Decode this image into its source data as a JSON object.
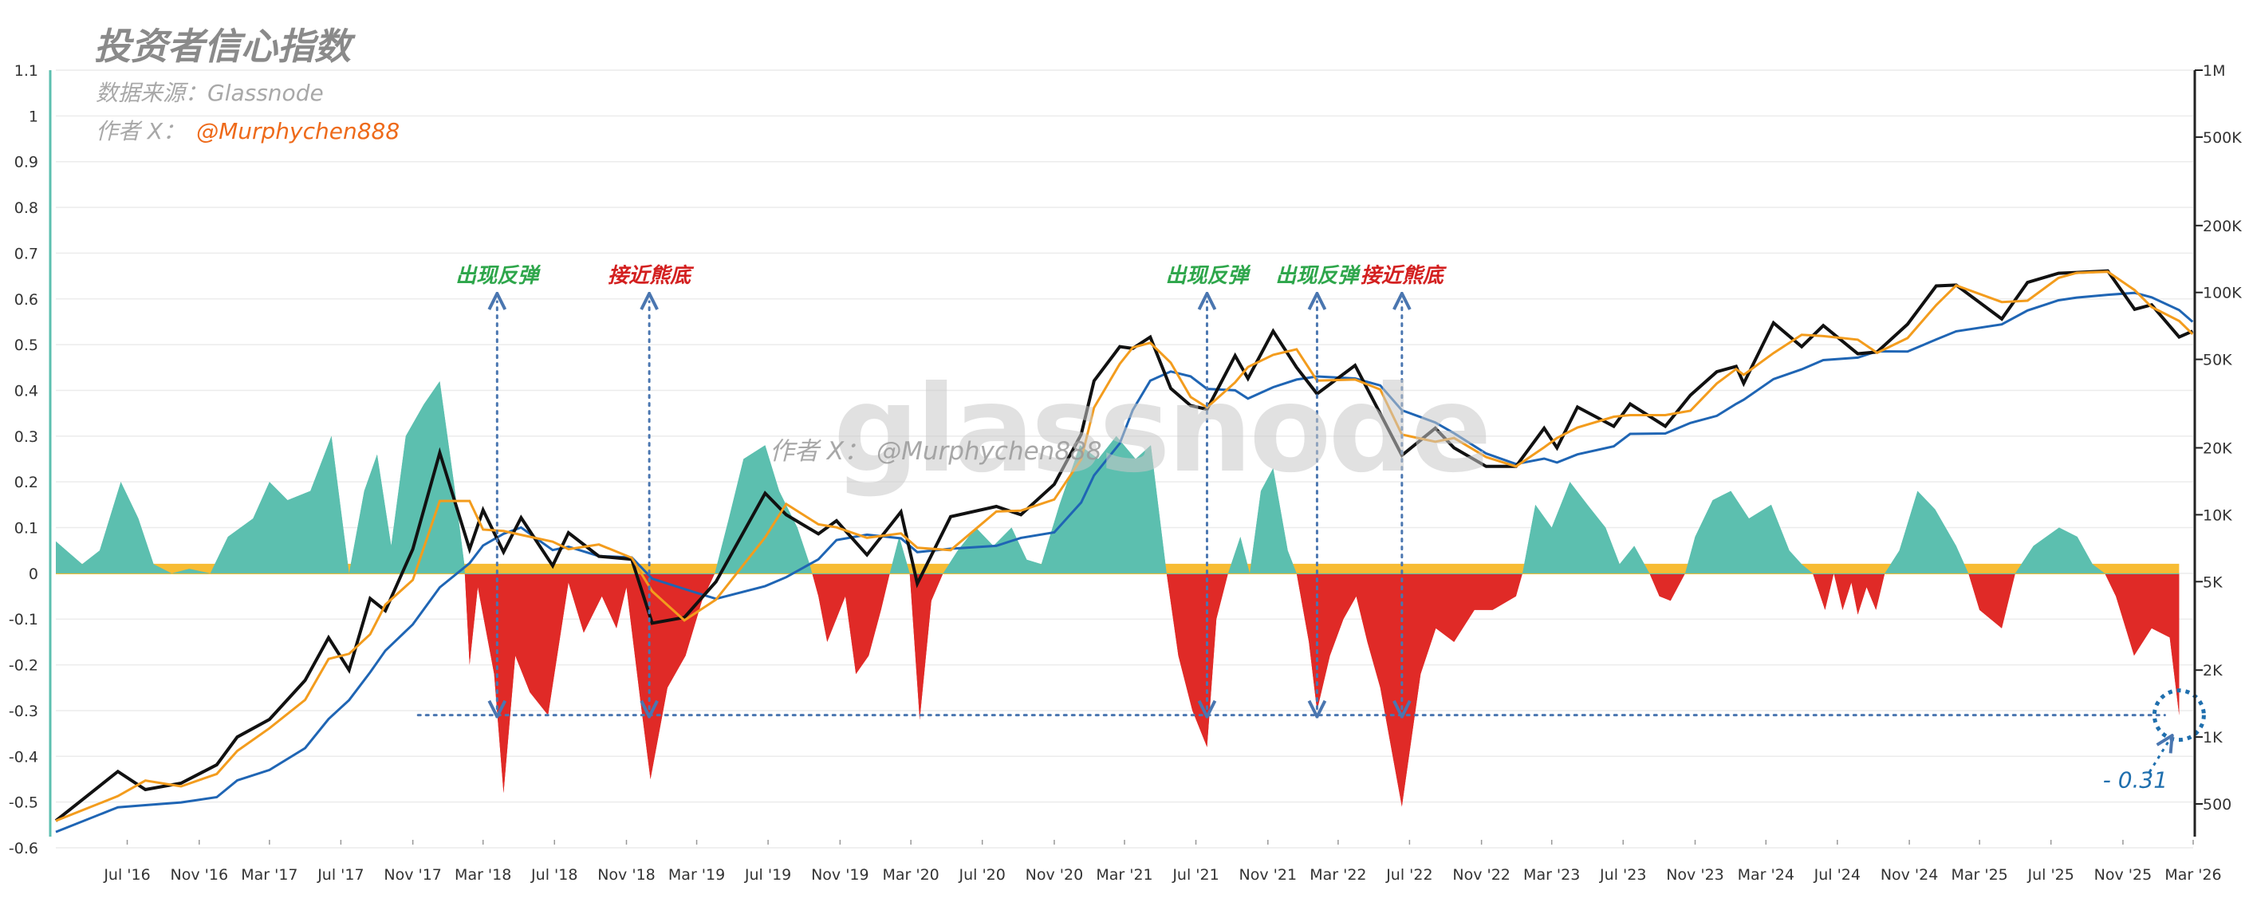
{
  "header": {
    "title": "投资者信心指数",
    "source_label": "数据来源：Glassnode",
    "author_label": "作者 X：",
    "author_handle": "@Murphychen888"
  },
  "watermark": {
    "brand": "glassnode",
    "author_label": "作者 X：",
    "author_handle": "@Murphychen888"
  },
  "chart_data": {
    "type": "area",
    "title": "投资者信心指数",
    "left_axis": {
      "ylim": [
        -0.6,
        1.1
      ],
      "ticks": [
        -0.6,
        -0.5,
        -0.4,
        -0.3,
        -0.2,
        -0.1,
        0,
        0.1,
        0.2,
        0.3,
        0.4,
        0.5,
        0.6,
        0.7,
        0.8,
        0.9,
        1,
        1.1
      ],
      "tick_labels": [
        "-0.6",
        "-0.5",
        "-0.4",
        "-0.3",
        "-0.2",
        "-0.1",
        "0",
        "0.1",
        "0.2",
        "0.3",
        "0.4",
        "0.5",
        "0.6",
        "0.7",
        "0.8",
        "0.9",
        "1",
        "1.1"
      ]
    },
    "right_axis": {
      "scale": "log",
      "ticks": [
        500,
        1000,
        2000,
        5000,
        10000,
        20000,
        50000,
        100000,
        200000,
        500000,
        1000000
      ],
      "tick_labels": [
        "500",
        "1K",
        "2K",
        "5K",
        "10K",
        "20K",
        "50K",
        "100K",
        "200K",
        "500K",
        "1M"
      ]
    },
    "x_axis": {
      "range": [
        "2016-03-01",
        "2026-03-01"
      ],
      "ticks": [
        "2016-07-01",
        "2016-11-01",
        "2017-03-01",
        "2017-07-01",
        "2017-11-01",
        "2018-03-01",
        "2018-07-01",
        "2018-11-01",
        "2019-03-01",
        "2019-07-01",
        "2019-11-01",
        "2020-03-01",
        "2020-07-01",
        "2020-11-01",
        "2021-03-01",
        "2021-07-01",
        "2021-11-01",
        "2022-03-01",
        "2022-07-01",
        "2022-11-01",
        "2023-03-01",
        "2023-07-01",
        "2023-11-01",
        "2024-03-01",
        "2024-07-01",
        "2024-11-01",
        "2025-03-01",
        "2025-07-01",
        "2025-11-01",
        "2026-03-01"
      ],
      "tick_labels": [
        "Jul '16",
        "Nov '16",
        "Mar '17",
        "Jul '17",
        "Nov '17",
        "Mar '18",
        "Jul '18",
        "Nov '18",
        "Mar '19",
        "Jul '19",
        "Nov '19",
        "Mar '20",
        "Jul '20",
        "Nov '20",
        "Mar '21",
        "Jul '21",
        "Nov '21",
        "Mar '22",
        "Jul '22",
        "Nov '22",
        "Mar '23",
        "Jul '23",
        "Nov '23",
        "Mar '24",
        "Jul '24",
        "Nov '24",
        "Mar '25",
        "Jul '25",
        "Nov '25",
        "Mar '26"
      ]
    },
    "colors": {
      "positive": "#5cbfaf",
      "neutral": "#f6b51e",
      "negative": "#e02a27",
      "price": "#111111",
      "short_ma": "#f39c1d",
      "long_ma": "#1f65b4",
      "annotation_arrow": "#4a76b0",
      "label_rebound": "#2ea64b",
      "label_bottom": "#d32020"
    },
    "index_series": {
      "name": "",
      "points": [
        [
          "2016-03-01",
          0.07
        ],
        [
          "2016-04-15",
          0.02
        ],
        [
          "2016-05-15",
          0.05
        ],
        [
          "2016-06-20",
          0.2
        ],
        [
          "2016-07-20",
          0.12
        ],
        [
          "2016-08-15",
          0.02
        ],
        [
          "2016-09-15",
          0.0
        ],
        [
          "2016-10-15",
          0.01
        ],
        [
          "2016-11-20",
          0.0
        ],
        [
          "2016-12-20",
          0.08
        ],
        [
          "2017-02-01",
          0.12
        ],
        [
          "2017-03-01",
          0.2
        ],
        [
          "2017-04-01",
          0.16
        ],
        [
          "2017-05-10",
          0.18
        ],
        [
          "2017-06-15",
          0.3
        ],
        [
          "2017-07-15",
          0.0
        ],
        [
          "2017-08-10",
          0.18
        ],
        [
          "2017-09-01",
          0.26
        ],
        [
          "2017-09-25",
          0.06
        ],
        [
          "2017-10-20",
          0.3
        ],
        [
          "2017-11-20",
          0.37
        ],
        [
          "2017-12-17",
          0.42
        ],
        [
          "2018-01-10",
          0.2
        ],
        [
          "2018-01-28",
          0.02
        ],
        [
          "2018-02-06",
          -0.2
        ],
        [
          "2018-02-20",
          -0.03
        ],
        [
          "2018-03-20",
          -0.22
        ],
        [
          "2018-04-05",
          -0.48
        ],
        [
          "2018-04-25",
          -0.18
        ],
        [
          "2018-05-20",
          -0.26
        ],
        [
          "2018-06-20",
          -0.31
        ],
        [
          "2018-07-25",
          -0.02
        ],
        [
          "2018-08-20",
          -0.13
        ],
        [
          "2018-09-20",
          -0.05
        ],
        [
          "2018-10-15",
          -0.12
        ],
        [
          "2018-11-01",
          -0.03
        ],
        [
          "2018-11-25",
          -0.28
        ],
        [
          "2018-12-12",
          -0.45
        ],
        [
          "2019-01-10",
          -0.25
        ],
        [
          "2019-02-10",
          -0.18
        ],
        [
          "2019-03-10",
          -0.06
        ],
        [
          "2019-04-01",
          0.0
        ],
        [
          "2019-04-25",
          0.12
        ],
        [
          "2019-05-20",
          0.25
        ],
        [
          "2019-06-26",
          0.28
        ],
        [
          "2019-07-20",
          0.18
        ],
        [
          "2019-08-20",
          0.1
        ],
        [
          "2019-09-10",
          0.02
        ],
        [
          "2019-09-25",
          -0.05
        ],
        [
          "2019-10-10",
          -0.15
        ],
        [
          "2019-11-10",
          -0.05
        ],
        [
          "2019-11-28",
          -0.22
        ],
        [
          "2019-12-20",
          -0.18
        ],
        [
          "2020-01-10",
          -0.08
        ],
        [
          "2020-01-25",
          0.0
        ],
        [
          "2020-02-10",
          0.08
        ],
        [
          "2020-02-28",
          0.0
        ],
        [
          "2020-03-16",
          -0.32
        ],
        [
          "2020-04-05",
          -0.06
        ],
        [
          "2020-04-25",
          0.0
        ],
        [
          "2020-05-20",
          0.05
        ],
        [
          "2020-06-20",
          0.1
        ],
        [
          "2020-07-20",
          0.06
        ],
        [
          "2020-08-20",
          0.1
        ],
        [
          "2020-09-15",
          0.03
        ],
        [
          "2020-10-10",
          0.02
        ],
        [
          "2020-11-10",
          0.15
        ],
        [
          "2020-12-15",
          0.28
        ],
        [
          "2021-01-15",
          0.25
        ],
        [
          "2021-02-15",
          0.3
        ],
        [
          "2021-03-20",
          0.25
        ],
        [
          "2021-04-15",
          0.28
        ],
        [
          "2021-05-12",
          0.0
        ],
        [
          "2021-06-01",
          -0.18
        ],
        [
          "2021-06-25",
          -0.3
        ],
        [
          "2021-07-20",
          -0.38
        ],
        [
          "2021-08-05",
          -0.1
        ],
        [
          "2021-08-25",
          0.0
        ],
        [
          "2021-09-15",
          0.08
        ],
        [
          "2021-10-01",
          0.0
        ],
        [
          "2021-10-20",
          0.18
        ],
        [
          "2021-11-10",
          0.23
        ],
        [
          "2021-12-05",
          0.05
        ],
        [
          "2021-12-20",
          0.0
        ],
        [
          "2022-01-10",
          -0.15
        ],
        [
          "2022-01-24",
          -0.3
        ],
        [
          "2022-02-15",
          -0.18
        ],
        [
          "2022-03-10",
          -0.1
        ],
        [
          "2022-04-01",
          -0.05
        ],
        [
          "2022-04-20",
          -0.15
        ],
        [
          "2022-05-12",
          -0.25
        ],
        [
          "2022-06-18",
          -0.51
        ],
        [
          "2022-07-20",
          -0.22
        ],
        [
          "2022-08-15",
          -0.12
        ],
        [
          "2022-09-15",
          -0.15
        ],
        [
          "2022-10-20",
          -0.08
        ],
        [
          "2022-11-20",
          -0.08
        ],
        [
          "2022-12-30",
          -0.05
        ],
        [
          "2023-01-10",
          0.0
        ],
        [
          "2023-02-01",
          0.15
        ],
        [
          "2023-03-01",
          0.1
        ],
        [
          "2023-04-01",
          0.2
        ],
        [
          "2023-05-01",
          0.15
        ],
        [
          "2023-06-01",
          0.1
        ],
        [
          "2023-06-25",
          0.02
        ],
        [
          "2023-07-20",
          0.06
        ],
        [
          "2023-08-15",
          0.0
        ],
        [
          "2023-09-01",
          -0.05
        ],
        [
          "2023-09-20",
          -0.06
        ],
        [
          "2023-10-15",
          0.0
        ],
        [
          "2023-11-01",
          0.08
        ],
        [
          "2023-12-01",
          0.16
        ],
        [
          "2024-01-01",
          0.18
        ],
        [
          "2024-02-01",
          0.12
        ],
        [
          "2024-03-10",
          0.15
        ],
        [
          "2024-04-10",
          0.05
        ],
        [
          "2024-05-01",
          0.02
        ],
        [
          "2024-05-20",
          0.0
        ],
        [
          "2024-06-10",
          -0.08
        ],
        [
          "2024-06-25",
          0.0
        ],
        [
          "2024-07-10",
          -0.08
        ],
        [
          "2024-07-25",
          -0.02
        ],
        [
          "2024-08-05",
          -0.09
        ],
        [
          "2024-08-20",
          -0.03
        ],
        [
          "2024-09-05",
          -0.08
        ],
        [
          "2024-09-20",
          0.0
        ],
        [
          "2024-10-15",
          0.05
        ],
        [
          "2024-11-15",
          0.18
        ],
        [
          "2024-12-15",
          0.14
        ],
        [
          "2025-01-20",
          0.06
        ],
        [
          "2025-02-10",
          0.0
        ],
        [
          "2025-03-01",
          -0.08
        ],
        [
          "2025-04-08",
          -0.12
        ],
        [
          "2025-05-01",
          0.0
        ],
        [
          "2025-06-01",
          0.06
        ],
        [
          "2025-07-15",
          0.1
        ],
        [
          "2025-08-15",
          0.08
        ],
        [
          "2025-09-10",
          0.02
        ],
        [
          "2025-10-01",
          0.0
        ],
        [
          "2025-10-20",
          -0.05
        ],
        [
          "2025-11-20",
          -0.18
        ],
        [
          "2025-12-20",
          -0.12
        ],
        [
          "2026-01-20",
          -0.14
        ],
        [
          "2026-02-05",
          -0.31
        ]
      ]
    },
    "price_series": {
      "name": "",
      "points": [
        [
          "2016-03-01",
          420
        ],
        [
          "2016-06-15",
          700
        ],
        [
          "2016-08-01",
          580
        ],
        [
          "2016-10-01",
          620
        ],
        [
          "2016-12-01",
          750
        ],
        [
          "2017-01-05",
          1000
        ],
        [
          "2017-03-01",
          1200
        ],
        [
          "2017-05-01",
          1800
        ],
        [
          "2017-06-10",
          2800
        ],
        [
          "2017-07-15",
          2000
        ],
        [
          "2017-08-20",
          4200
        ],
        [
          "2017-09-15",
          3700
        ],
        [
          "2017-11-01",
          7000
        ],
        [
          "2017-12-17",
          19000
        ],
        [
          "2018-02-06",
          7000
        ],
        [
          "2018-03-01",
          10500
        ],
        [
          "2018-04-05",
          6800
        ],
        [
          "2018-05-05",
          9700
        ],
        [
          "2018-06-28",
          5900
        ],
        [
          "2018-07-25",
          8300
        ],
        [
          "2018-09-15",
          6500
        ],
        [
          "2018-11-10",
          6300
        ],
        [
          "2018-12-15",
          3250
        ],
        [
          "2019-02-08",
          3450
        ],
        [
          "2019-04-03",
          5000
        ],
        [
          "2019-06-26",
          12500
        ],
        [
          "2019-08-01",
          10000
        ],
        [
          "2019-09-25",
          8200
        ],
        [
          "2019-10-26",
          9400
        ],
        [
          "2019-12-17",
          6600
        ],
        [
          "2020-02-13",
          10300
        ],
        [
          "2020-03-12",
          4900
        ],
        [
          "2020-05-08",
          9800
        ],
        [
          "2020-07-25",
          10900
        ],
        [
          "2020-09-05",
          10000
        ],
        [
          "2020-11-01",
          13700
        ],
        [
          "2020-12-17",
          23000
        ],
        [
          "2021-01-08",
          40000
        ],
        [
          "2021-02-21",
          57000
        ],
        [
          "2021-03-15",
          56000
        ],
        [
          "2021-04-14",
          63000
        ],
        [
          "2021-05-19",
          37000
        ],
        [
          "2021-06-22",
          31000
        ],
        [
          "2021-07-20",
          29800
        ],
        [
          "2021-09-06",
          52000
        ],
        [
          "2021-09-28",
          41000
        ],
        [
          "2021-11-10",
          67000
        ],
        [
          "2021-12-20",
          46000
        ],
        [
          "2022-01-24",
          35000
        ],
        [
          "2022-03-30",
          47000
        ],
        [
          "2022-05-12",
          28500
        ],
        [
          "2022-06-18",
          18500
        ],
        [
          "2022-08-14",
          24500
        ],
        [
          "2022-09-15",
          20000
        ],
        [
          "2022-11-09",
          16500
        ],
        [
          "2022-12-30",
          16500
        ],
        [
          "2023-02-16",
          24500
        ],
        [
          "2023-03-10",
          20000
        ],
        [
          "2023-04-14",
          30500
        ],
        [
          "2023-06-15",
          25000
        ],
        [
          "2023-07-13",
          31500
        ],
        [
          "2023-09-11",
          25000
        ],
        [
          "2023-10-24",
          34500
        ],
        [
          "2023-12-08",
          44000
        ],
        [
          "2024-01-10",
          46500
        ],
        [
          "2024-01-23",
          39000
        ],
        [
          "2024-03-14",
          73000
        ],
        [
          "2024-05-01",
          57000
        ],
        [
          "2024-06-07",
          71000
        ],
        [
          "2024-08-05",
          53000
        ],
        [
          "2024-09-07",
          54000
        ],
        [
          "2024-10-29",
          72000
        ],
        [
          "2024-12-17",
          107000
        ],
        [
          "2025-01-20",
          108000
        ],
        [
          "2025-04-08",
          76000
        ],
        [
          "2025-05-22",
          111000
        ],
        [
          "2025-07-14",
          122000
        ],
        [
          "2025-08-14",
          123000
        ],
        [
          "2025-10-06",
          125000
        ],
        [
          "2025-11-21",
          84000
        ],
        [
          "2025-12-20",
          88000
        ],
        [
          "2026-02-05",
          63000
        ],
        [
          "2026-02-28",
          67000
        ]
      ]
    },
    "annotations": [
      {
        "label": "出现反弹",
        "date": "2018-03-25",
        "type": "rebound"
      },
      {
        "label": "接近熊底",
        "date": "2018-12-10",
        "type": "bottom"
      },
      {
        "label": "出现反弹",
        "date": "2021-07-20",
        "type": "rebound"
      },
      {
        "label": "出现反弹",
        "date": "2022-01-24",
        "type": "rebound"
      },
      {
        "label": "接近熊底",
        "date": "2022-06-18",
        "type": "bottom"
      }
    ],
    "reference_line": {
      "value": -0.31,
      "start": "2017-11-10",
      "end": "2026-02-05"
    },
    "current_value": {
      "label": "- 0.31",
      "date": "2026-02-05",
      "value": -0.31
    }
  }
}
